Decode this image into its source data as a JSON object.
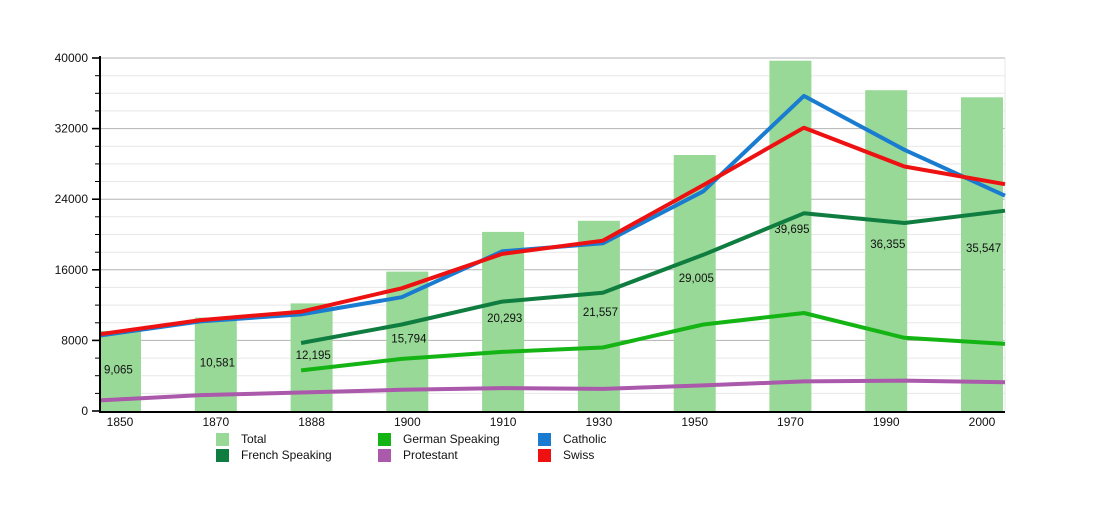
{
  "chart_data": {
    "type": "composed-bar-line",
    "title": "",
    "categories": [
      "1850",
      "1870",
      "1888",
      "1900",
      "1910",
      "1930",
      "1950",
      "1970",
      "1990",
      "2000"
    ],
    "bar_series": {
      "name": "Total",
      "color": "#98d998",
      "values": [
        9065,
        10581,
        12195,
        15794,
        20293,
        21557,
        29005,
        39695,
        36355,
        35547
      ],
      "value_labels": [
        "9,065",
        "10,581",
        "12,195",
        "15,794",
        "20,293",
        "21,557",
        "29,005",
        "39,695",
        "36,355",
        "35,547"
      ]
    },
    "line_series": [
      {
        "name": "German Speaking",
        "color": "#14b414",
        "values": [
          null,
          null,
          4600,
          5900,
          6700,
          7200,
          9800,
          11100,
          8300,
          7600
        ]
      },
      {
        "name": "French Speaking",
        "color": "#0f7d3f",
        "values": [
          null,
          null,
          7700,
          9800,
          12400,
          13400,
          17700,
          22400,
          21300,
          22700
        ]
      },
      {
        "name": "Protestant",
        "color": "#ab59ab",
        "values": [
          1200,
          1800,
          2100,
          2400,
          2600,
          2500,
          2900,
          3350,
          3450,
          3250
        ]
      },
      {
        "name": "Catholic",
        "color": "#1a7cd0",
        "values": [
          8550,
          10150,
          10950,
          12900,
          18100,
          19000,
          24900,
          35700,
          29600,
          24400
        ]
      },
      {
        "name": "Swiss",
        "color": "#ee1111",
        "values": [
          8700,
          10300,
          11250,
          13900,
          17800,
          19300,
          25600,
          32100,
          27700,
          25700
        ]
      }
    ],
    "y_axis": {
      "min": 0,
      "max": 40000,
      "major_step": 8000,
      "minor_step": 2000,
      "tick_labels": [
        "0",
        "8000",
        "16000",
        "24000",
        "32000",
        "40000"
      ]
    },
    "legend_order": [
      "Total",
      "German Speaking",
      "Catholic",
      "French Speaking",
      "Protestant",
      "Swiss"
    ],
    "legend": [
      {
        "label": "Total",
        "color": "#98d998"
      },
      {
        "label": "German Speaking",
        "color": "#14b414"
      },
      {
        "label": "Catholic",
        "color": "#1a7cd0"
      },
      {
        "label": "French Speaking",
        "color": "#0f7d3f"
      },
      {
        "label": "Protestant",
        "color": "#ab59ab"
      },
      {
        "label": "Swiss",
        "color": "#ee1111"
      }
    ],
    "grid": {
      "major_color": "#b3b3b3",
      "minor_color": "#e7e7e7",
      "vertical_lines": false
    },
    "axis_color": "#000000",
    "layout": {
      "legend_position": "bottom",
      "bar_label_inside": true
    }
  }
}
